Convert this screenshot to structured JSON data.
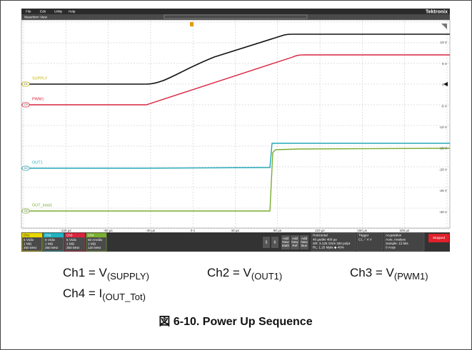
{
  "menu": [
    "File",
    "Edit",
    "Utility",
    "Help"
  ],
  "brand": "Tektronix",
  "view_title": "Waveform View",
  "trace_labels": [
    "SUPPLY",
    "PWM1",
    "OUT1",
    "OUT_total1"
  ],
  "channel_badges": [
    "C1",
    "C3",
    "C2",
    "C4"
  ],
  "y_labels": [
    "10 V",
    "5 V",
    "0 V",
    "-5 V",
    "-10 V",
    "-15 V",
    "-20 V",
    "-25 V",
    "-30 V"
  ],
  "x_labels": [
    "-120 µs",
    "-80 µs",
    "-40 µs",
    "0 s",
    "40 µs",
    "80 µs",
    "120 µs",
    "160 µs",
    "200 µs"
  ],
  "channels": [
    {
      "name": "Ch1",
      "lines": [
        "5 V/div",
        "1 MΩ",
        "250 MHz"
      ]
    },
    {
      "name": "Ch2",
      "lines": [
        "5 V/div",
        "1 MΩ",
        "250 MHz"
      ]
    },
    {
      "name": "Ch3",
      "lines": [
        "5 V/div",
        "1 MΩ",
        "250 MHz"
      ]
    },
    {
      "name": "Ch4",
      "lines": [
        "50 mV/div",
        "1 MΩ",
        "120 MHz"
      ]
    }
  ],
  "buttons": [
    "5",
    "6"
  ],
  "add_buttons": [
    [
      "Add",
      "New",
      "Math"
    ],
    [
      "Add",
      "New",
      "Ref"
    ],
    [
      "Add",
      "New",
      "Bus"
    ]
  ],
  "horizontal": {
    "title": "Horizontal",
    "lines": [
      "40 µs/div      400 µs",
      "SR: 3.125 GS/s  320 ps/pt",
      "RL: 1.25 Mpts  ◆ 40%"
    ]
  },
  "trigger": {
    "title": "Trigger",
    "lines": [
      "C1  ⟋  4 V"
    ]
  },
  "acquisition": {
    "title": "Acquisition",
    "lines": [
      "Auto,   Analyze",
      "Sample: 12 bits",
      "0 Acqs"
    ]
  },
  "status": "Stopped",
  "captions": [
    {
      "label": "Ch1 = V",
      "sub": "(SUPPLY)"
    },
    {
      "label": "Ch2 = V",
      "sub": "(OUT1)"
    },
    {
      "label": "Ch3 = V",
      "sub": "(PWM1)"
    },
    {
      "label": "Ch4 = I",
      "sub": "(OUT_Tot)"
    }
  ],
  "figure_caption": "図 6-10. Power Up Sequence"
}
